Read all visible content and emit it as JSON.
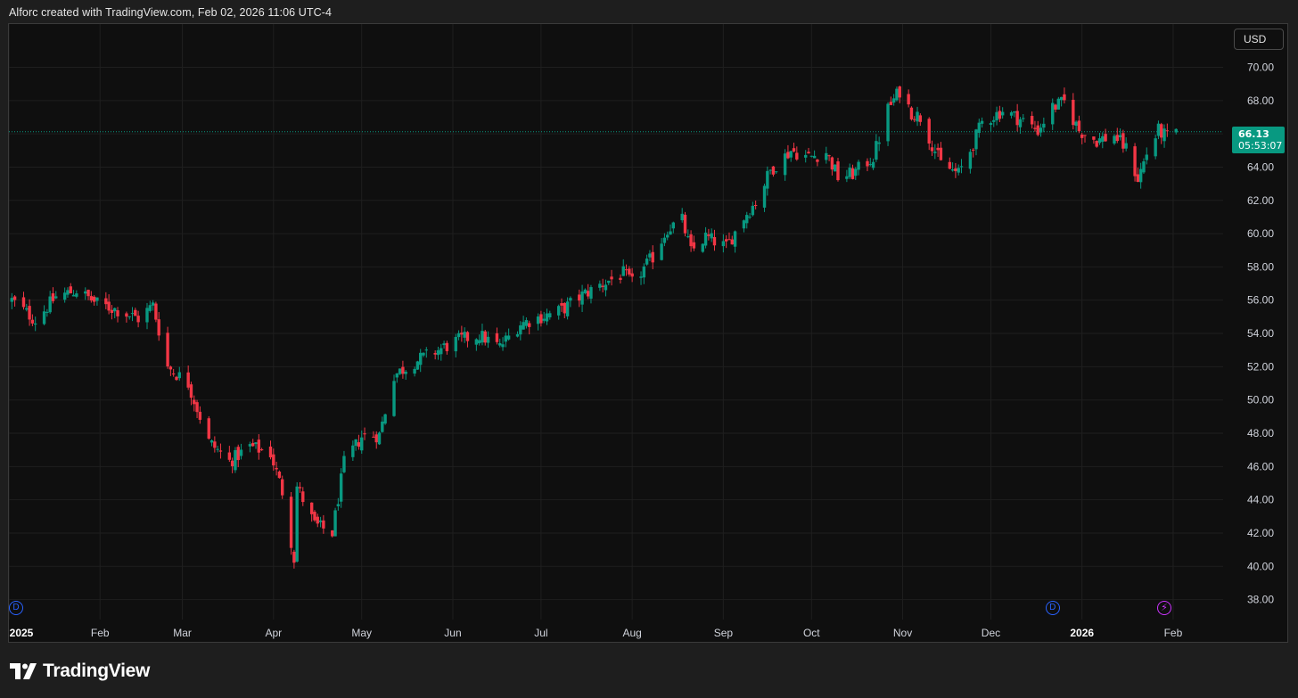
{
  "header": {
    "attribution": "Alforc created with TradingView.com, Feb 02, 2026 11:06 UTC-4"
  },
  "currency_button": "USD",
  "last_price": {
    "value": "66.13",
    "countdown": "05:53:07"
  },
  "markers": [
    {
      "type": "dividend",
      "label": "D",
      "date": "2025-01-02"
    },
    {
      "type": "dividend",
      "label": "D",
      "date": "2025-12-22"
    },
    {
      "type": "earnings",
      "label": "⚡",
      "date": "2026-01-29"
    }
  ],
  "footer": {
    "brand": "TradingView"
  },
  "colors": {
    "up": "#089981",
    "down": "#f23645",
    "background": "#0f0f0f",
    "grid": "#1f1f1f"
  },
  "chart_data": {
    "type": "candlestick",
    "title": "",
    "xlabel": "",
    "ylabel": "",
    "x_range": [
      "2025-01-01",
      "2026-02-18"
    ],
    "ylim": [
      36.8,
      72.6
    ],
    "y_ticks": [
      "38.00",
      "40.00",
      "42.00",
      "44.00",
      "46.00",
      "48.00",
      "50.00",
      "52.00",
      "54.00",
      "56.00",
      "58.00",
      "60.00",
      "62.00",
      "64.00",
      "66.00",
      "68.00",
      "70.00"
    ],
    "x_ticks": [
      {
        "label": "2025",
        "date": "2025-01-01",
        "bold": true
      },
      {
        "label": "Feb",
        "date": "2025-02-01",
        "bold": false
      },
      {
        "label": "Mar",
        "date": "2025-03-01",
        "bold": false
      },
      {
        "label": "Apr",
        "date": "2025-04-01",
        "bold": false
      },
      {
        "label": "May",
        "date": "2025-05-01",
        "bold": false
      },
      {
        "label": "Jun",
        "date": "2025-06-01",
        "bold": false
      },
      {
        "label": "Jul",
        "date": "2025-07-01",
        "bold": false
      },
      {
        "label": "Aug",
        "date": "2025-08-01",
        "bold": false
      },
      {
        "label": "Sep",
        "date": "2025-09-01",
        "bold": false
      },
      {
        "label": "Oct",
        "date": "2025-10-01",
        "bold": false
      },
      {
        "label": "Nov",
        "date": "2025-11-01",
        "bold": false
      },
      {
        "label": "Dec",
        "date": "2025-12-01",
        "bold": false
      },
      {
        "label": "2026",
        "date": "2026-01-01",
        "bold": true
      },
      {
        "label": "Feb",
        "date": "2026-02-01",
        "bold": false
      }
    ],
    "grid": true,
    "last_price_line": 66.13,
    "close_path": [
      [
        "2025-01-02",
        56.0
      ],
      [
        "2025-01-10",
        54.8
      ],
      [
        "2025-01-17",
        56.2
      ],
      [
        "2025-01-24",
        56.6
      ],
      [
        "2025-01-31",
        55.8
      ],
      [
        "2025-02-07",
        55.4
      ],
      [
        "2025-02-14",
        54.9
      ],
      [
        "2025-02-19",
        55.7
      ],
      [
        "2025-02-24",
        52.0
      ],
      [
        "2025-03-03",
        51.0
      ],
      [
        "2025-03-10",
        47.5
      ],
      [
        "2025-03-17",
        46.3
      ],
      [
        "2025-03-24",
        47.2
      ],
      [
        "2025-03-31",
        46.8
      ],
      [
        "2025-04-04",
        44.5
      ],
      [
        "2025-04-08",
        40.5
      ],
      [
        "2025-04-09",
        44.8
      ],
      [
        "2025-04-15",
        42.5
      ],
      [
        "2025-04-21",
        42.0
      ],
      [
        "2025-04-25",
        46.2
      ],
      [
        "2025-05-01",
        47.8
      ],
      [
        "2025-05-07",
        47.9
      ],
      [
        "2025-05-12",
        51.5
      ],
      [
        "2025-05-19",
        52.3
      ],
      [
        "2025-05-27",
        53.0
      ],
      [
        "2025-06-03",
        53.6
      ],
      [
        "2025-06-10",
        53.9
      ],
      [
        "2025-06-17",
        53.2
      ],
      [
        "2025-06-24",
        54.6
      ],
      [
        "2025-07-01",
        55.0
      ],
      [
        "2025-07-08",
        55.4
      ],
      [
        "2025-07-15",
        56.3
      ],
      [
        "2025-07-22",
        57.0
      ],
      [
        "2025-07-29",
        57.6
      ],
      [
        "2025-08-01",
        57.0
      ],
      [
        "2025-08-08",
        58.6
      ],
      [
        "2025-08-13",
        60.3
      ],
      [
        "2025-08-18",
        60.8
      ],
      [
        "2025-08-21",
        58.9
      ],
      [
        "2025-08-26",
        59.8
      ],
      [
        "2025-09-02",
        59.2
      ],
      [
        "2025-09-08",
        61.0
      ],
      [
        "2025-09-12",
        61.9
      ],
      [
        "2025-09-17",
        63.8
      ],
      [
        "2025-09-24",
        65.0
      ],
      [
        "2025-09-30",
        64.6
      ],
      [
        "2025-10-06",
        64.9
      ],
      [
        "2025-10-10",
        63.4
      ],
      [
        "2025-10-15",
        63.6
      ],
      [
        "2025-10-22",
        64.6
      ],
      [
        "2025-10-27",
        67.5
      ],
      [
        "2025-10-31",
        68.6
      ],
      [
        "2025-11-04",
        67.3
      ],
      [
        "2025-11-07",
        67.0
      ],
      [
        "2025-11-12",
        65.0
      ],
      [
        "2025-11-14",
        64.2
      ],
      [
        "2025-11-20",
        63.6
      ],
      [
        "2025-11-24",
        65.0
      ],
      [
        "2025-11-28",
        66.7
      ],
      [
        "2025-12-05",
        67.4
      ],
      [
        "2025-12-12",
        66.8
      ],
      [
        "2025-12-17",
        66.2
      ],
      [
        "2025-12-22",
        67.6
      ],
      [
        "2025-12-26",
        67.9
      ],
      [
        "2025-12-31",
        66.2
      ],
      [
        "2026-01-06",
        65.6
      ],
      [
        "2026-01-12",
        65.9
      ],
      [
        "2026-01-16",
        65.1
      ],
      [
        "2026-01-20",
        63.3
      ],
      [
        "2026-01-23",
        64.8
      ],
      [
        "2026-01-27",
        66.2
      ],
      [
        "2026-01-30",
        65.8
      ],
      [
        "2026-02-02",
        66.13
      ]
    ]
  }
}
